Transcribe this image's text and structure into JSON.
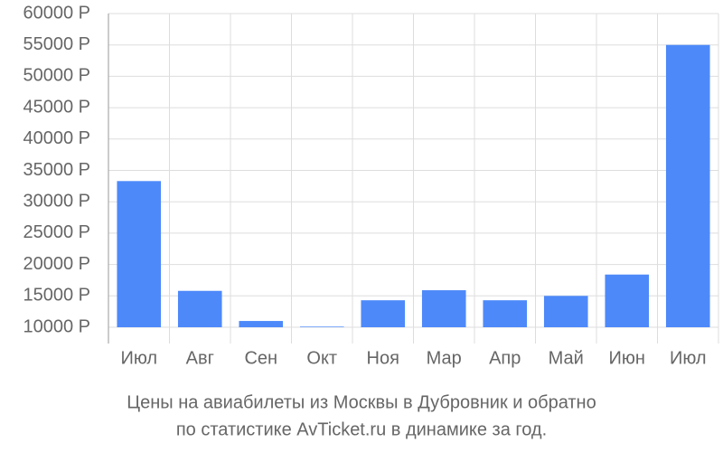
{
  "chart_data": {
    "type": "bar",
    "title": [
      "Цены на авиабилеты из Москвы в Дубровник и обратно",
      "по статистике AvTicket.ru в динамике за год."
    ],
    "categories": [
      "Июл",
      "Авг",
      "Сен",
      "Окт",
      "Ноя",
      "Мар",
      "Апр",
      "Май",
      "Июн",
      "Июл"
    ],
    "values": [
      33300,
      15800,
      11000,
      10100,
      14300,
      15900,
      14300,
      15000,
      18400,
      55000
    ],
    "color": "#4d89f9",
    "ylim": [
      10000,
      60000
    ],
    "yticks": [
      {
        "value": 10000,
        "label": "10000 Р"
      },
      {
        "value": 15000,
        "label": "15000 Р"
      },
      {
        "value": 20000,
        "label": "20000 Р"
      },
      {
        "value": 25000,
        "label": "25000 Р"
      },
      {
        "value": 30000,
        "label": "30000 Р"
      },
      {
        "value": 35000,
        "label": "35000 Р"
      },
      {
        "value": 40000,
        "label": "40000 Р"
      },
      {
        "value": 45000,
        "label": "45000 Р"
      },
      {
        "value": 50000,
        "label": "50000 Р"
      },
      {
        "value": 55000,
        "label": "55000 Р"
      },
      {
        "value": 60000,
        "label": "60000 Р"
      }
    ],
    "grid": true
  }
}
